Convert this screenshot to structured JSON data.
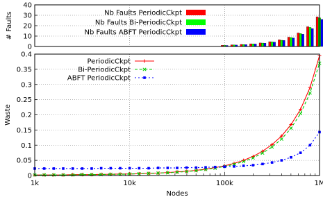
{
  "chart_data": [
    {
      "type": "bar",
      "ylabel": "# Faults",
      "yticks": [
        "0",
        "10",
        "20",
        "30",
        "40"
      ],
      "ylim": [
        0,
        40
      ],
      "x_scale": "log",
      "xlim": [
        1000,
        1000000
      ],
      "grid": true,
      "legend": "top-right",
      "x": [
        100000,
        125893,
        158489,
        199526,
        251189,
        316228,
        398107,
        501187,
        630957,
        794328,
        1000000
      ],
      "series": [
        {
          "name": "Nb Faults PeriodicCkpt",
          "color": "#ff0000",
          "values": [
            1.2,
            1.6,
            2.0,
            2.6,
            3.4,
            4.6,
            6.4,
            9.0,
            13.0,
            19.0,
            28.5
          ]
        },
        {
          "name": "Nb Faults Bi-PeriodicCkpt",
          "color": "#00ff00",
          "values": [
            1.1,
            1.5,
            1.9,
            2.5,
            3.3,
            4.4,
            6.0,
            8.6,
            12.4,
            18.4,
            27.5
          ]
        },
        {
          "name": "Nb Faults ABFT  PeriodicCkpt",
          "color": "#0000ff",
          "values": [
            1.0,
            1.4,
            1.8,
            2.4,
            3.2,
            4.2,
            5.8,
            8.2,
            11.8,
            17.2,
            26.0
          ]
        }
      ]
    },
    {
      "type": "line",
      "xlabel": "Nodes",
      "ylabel": "Waste",
      "x_scale": "log",
      "xlim": [
        1000,
        1000000
      ],
      "ylim": [
        0,
        0.4
      ],
      "xticks": [
        "1k",
        "10k",
        "100k",
        "1M"
      ],
      "yticks": [
        "0",
        "0.05",
        "0.1",
        "0.15",
        "0.2",
        "0.25",
        "0.3",
        "0.35",
        "0.4"
      ],
      "grid": true,
      "legend": "top-left",
      "x": [
        1000,
        1259,
        1585,
        1995,
        2512,
        3162,
        3981,
        5012,
        6310,
        7943,
        10000,
        12589,
        15849,
        19953,
        25119,
        31623,
        39811,
        50119,
        63096,
        79433,
        100000,
        125893,
        158489,
        199526,
        251189,
        316228,
        398107,
        501187,
        630957,
        794328,
        1000000
      ],
      "series": [
        {
          "name": "PeriodicCkpt",
          "color": "#ff0000",
          "dash": "",
          "marker": "plus",
          "values": [
            0.002,
            0.002,
            0.002,
            0.002,
            0.003,
            0.003,
            0.003,
            0.004,
            0.004,
            0.005,
            0.005,
            0.006,
            0.007,
            0.008,
            0.01,
            0.012,
            0.014,
            0.017,
            0.021,
            0.026,
            0.032,
            0.04,
            0.05,
            0.063,
            0.08,
            0.102,
            0.13,
            0.168,
            0.218,
            0.29,
            0.395
          ]
        },
        {
          "name": "Bi-PeriodicCkpt",
          "color": "#00cc00",
          "dash": "4,3",
          "marker": "cross",
          "values": [
            0.002,
            0.002,
            0.002,
            0.002,
            0.002,
            0.003,
            0.003,
            0.003,
            0.004,
            0.004,
            0.005,
            0.006,
            0.007,
            0.008,
            0.009,
            0.011,
            0.013,
            0.016,
            0.02,
            0.024,
            0.03,
            0.037,
            0.046,
            0.058,
            0.074,
            0.094,
            0.12,
            0.156,
            0.204,
            0.272,
            0.37
          ]
        },
        {
          "name": "ABFT  PeriodicCkpt",
          "color": "#0000ff",
          "dash": "2,3",
          "marker": "square",
          "values": [
            0.023,
            0.023,
            0.023,
            0.023,
            0.023,
            0.023,
            0.023,
            0.024,
            0.024,
            0.024,
            0.024,
            0.024,
            0.024,
            0.025,
            0.025,
            0.025,
            0.026,
            0.026,
            0.027,
            0.028,
            0.029,
            0.03,
            0.032,
            0.034,
            0.038,
            0.043,
            0.05,
            0.06,
            0.075,
            0.1,
            0.143
          ]
        }
      ]
    }
  ]
}
